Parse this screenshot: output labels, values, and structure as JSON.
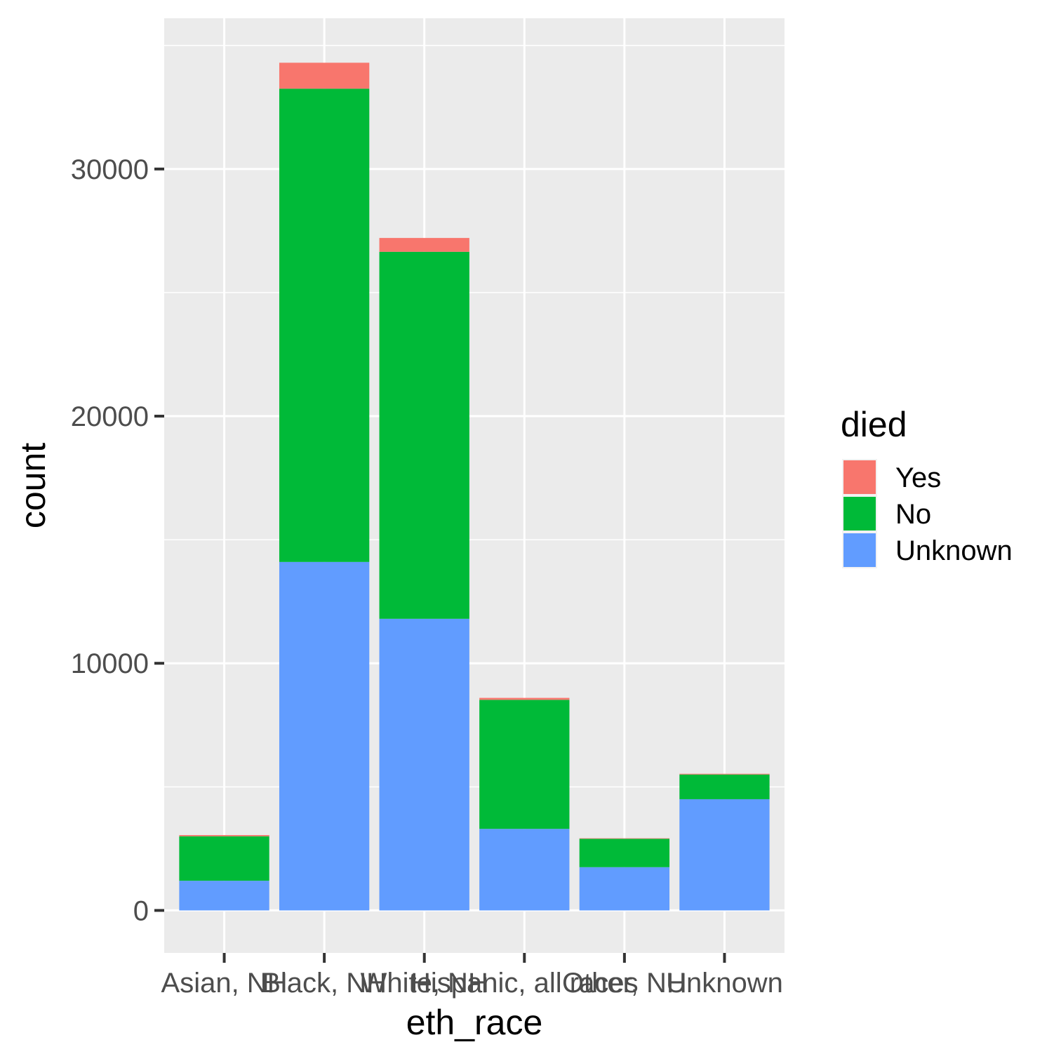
{
  "chart_data": {
    "type": "bar",
    "stacked": true,
    "categories": [
      "Asian, NH",
      "Black, NH",
      "White, NH",
      "Hispanic, all races",
      "Other, NH",
      "Unknown"
    ],
    "series": [
      {
        "name": "Yes",
        "color": "#F8766D",
        "values": [
          50,
          1050,
          560,
          80,
          20,
          30
        ]
      },
      {
        "name": "No",
        "color": "#00BA38",
        "values": [
          1800,
          19150,
          14850,
          5220,
          1150,
          1000
        ]
      },
      {
        "name": "Unknown",
        "color": "#619CFF",
        "values": [
          1200,
          14100,
          11800,
          3300,
          1750,
          4500
        ]
      }
    ],
    "xlabel": "eth_race",
    "ylabel": "count",
    "yticks": [
      0,
      10000,
      20000,
      30000
    ],
    "ylim": [
      -1720,
      36100
    ],
    "legend": {
      "title": "died",
      "position": "right",
      "entries": [
        "Yes",
        "No",
        "Unknown"
      ]
    },
    "grid": true,
    "panel_background": "#EBEBEB",
    "grid_color": "#FFFFFF"
  }
}
